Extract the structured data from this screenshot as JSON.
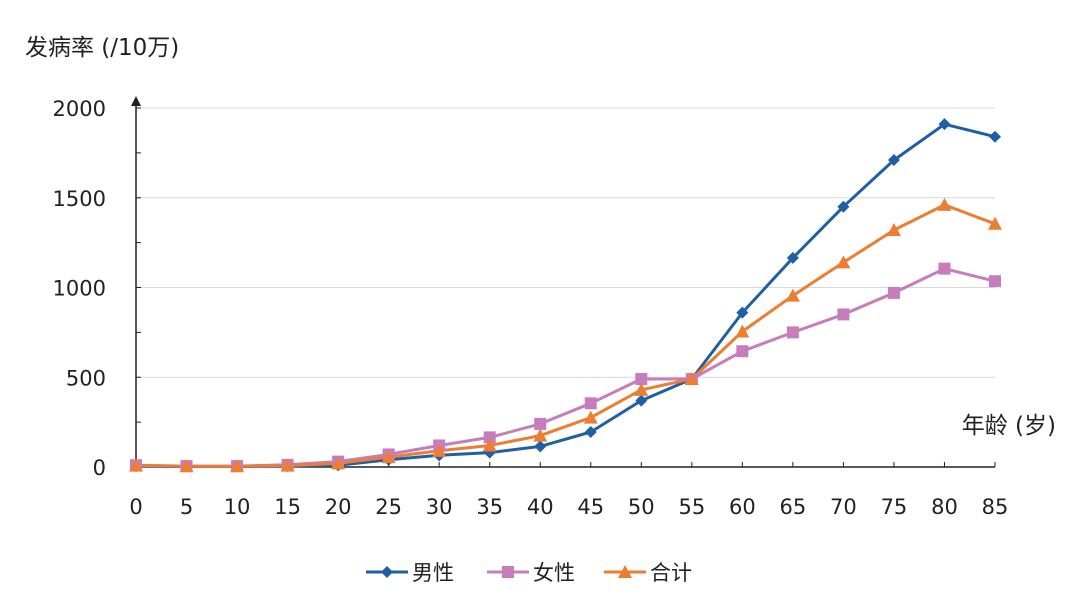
{
  "chart_data": {
    "type": "line",
    "title": "",
    "ylabel": "发病率 (/10万)",
    "xlabel": "年龄 (岁)",
    "x": [
      0,
      5,
      10,
      15,
      20,
      25,
      30,
      35,
      40,
      45,
      50,
      55,
      60,
      65,
      70,
      75,
      80,
      85
    ],
    "ylim": [
      0,
      2000
    ],
    "yticks": [
      0,
      500,
      1000,
      1500,
      2000
    ],
    "grid": true,
    "legend_position": "bottom",
    "series": [
      {
        "name": "男性",
        "color": "#1f5fa6",
        "marker": "diamond",
        "values": [
          5,
          3,
          3,
          5,
          10,
          40,
          65,
          80,
          115,
          195,
          370,
          490,
          860,
          1165,
          1450,
          1710,
          1910,
          1840
        ]
      },
      {
        "name": "女性",
        "color": "#c77cbc",
        "marker": "square",
        "values": [
          10,
          5,
          5,
          12,
          30,
          70,
          120,
          165,
          240,
          355,
          490,
          490,
          645,
          750,
          850,
          970,
          1105,
          1035
        ]
      },
      {
        "name": "合计",
        "color": "#ed7d31",
        "marker": "triangle",
        "values": [
          8,
          4,
          4,
          8,
          20,
          55,
          90,
          120,
          175,
          275,
          430,
          490,
          755,
          955,
          1140,
          1320,
          1460,
          1355
        ]
      }
    ]
  }
}
